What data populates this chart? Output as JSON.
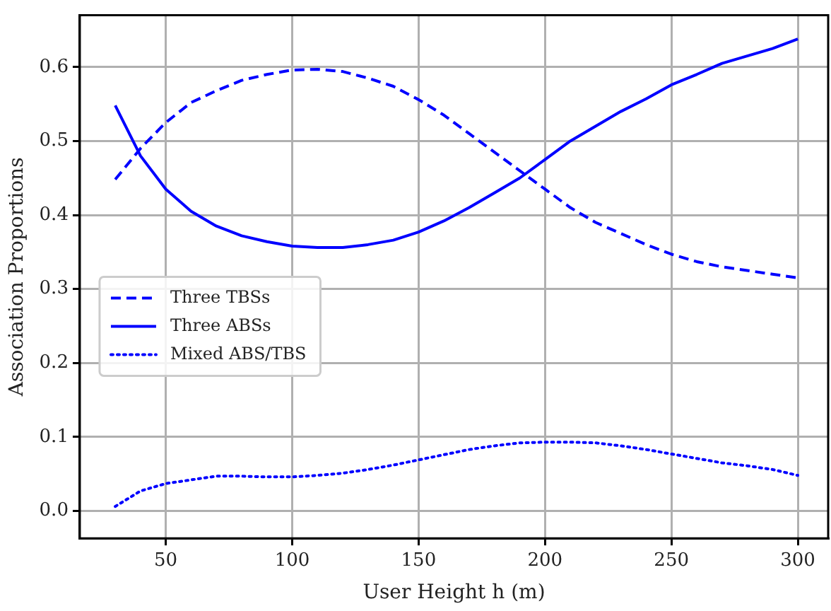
{
  "chart_data": {
    "type": "line",
    "xlabel": "User Height h (m)",
    "ylabel": "Association Proportions",
    "x": [
      30,
      40,
      50,
      60,
      70,
      80,
      90,
      100,
      110,
      120,
      130,
      140,
      150,
      160,
      170,
      180,
      190,
      200,
      210,
      220,
      230,
      240,
      250,
      260,
      270,
      280,
      290,
      300
    ],
    "series": [
      {
        "name": "Three TBSs",
        "color": "#0000ff",
        "line_style": "dashed",
        "values": [
          0.448,
          0.49,
          0.525,
          0.552,
          0.568,
          0.582,
          0.59,
          0.596,
          0.597,
          0.594,
          0.585,
          0.574,
          0.556,
          0.535,
          0.51,
          0.485,
          0.46,
          0.435,
          0.41,
          0.39,
          0.375,
          0.36,
          0.347,
          0.337,
          0.33,
          0.325,
          0.32,
          0.315
        ]
      },
      {
        "name": "Three ABSs",
        "color": "#0000ff",
        "line_style": "solid",
        "values": [
          0.548,
          0.48,
          0.435,
          0.405,
          0.385,
          0.372,
          0.364,
          0.358,
          0.356,
          0.356,
          0.36,
          0.366,
          0.377,
          0.392,
          0.41,
          0.43,
          0.45,
          0.475,
          0.5,
          0.52,
          0.54,
          0.557,
          0.576,
          0.59,
          0.605,
          0.615,
          0.625,
          0.638
        ]
      },
      {
        "name": "Mixed ABS/TBS",
        "color": "#0000ff",
        "line_style": "dotted",
        "values": [
          0.006,
          0.027,
          0.037,
          0.042,
          0.047,
          0.047,
          0.046,
          0.046,
          0.048,
          0.051,
          0.056,
          0.062,
          0.069,
          0.076,
          0.083,
          0.088,
          0.092,
          0.093,
          0.093,
          0.092,
          0.088,
          0.083,
          0.077,
          0.071,
          0.065,
          0.061,
          0.056,
          0.048
        ]
      }
    ],
    "xlim": [
      16,
      312
    ],
    "xticks": [
      50,
      100,
      150,
      200,
      250,
      300
    ],
    "ylim": [
      -0.037,
      0.67
    ],
    "yticks": [
      {
        "value": 0,
        "label": "0.0"
      },
      {
        "value": 0.1,
        "label": "0.1"
      },
      {
        "value": 0.2,
        "label": "0.2"
      },
      {
        "value": 0.3,
        "label": "0.3"
      },
      {
        "value": 0.4,
        "label": "0.4"
      },
      {
        "value": 0.5,
        "label": "0.5"
      },
      {
        "value": 0.6,
        "label": "0.6"
      }
    ],
    "grid": true,
    "legend": "center left",
    "marker": "none"
  }
}
